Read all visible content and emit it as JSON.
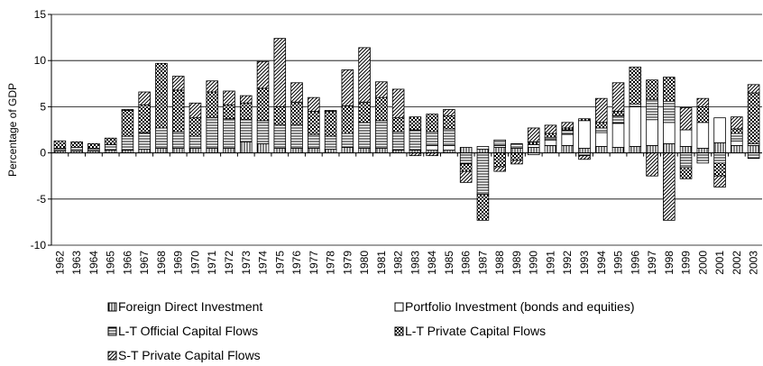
{
  "chart_data": {
    "type": "bar",
    "stacked": true,
    "y_label": "Percentage of GDP",
    "categories": [
      "1962",
      "1963",
      "1964",
      "1965",
      "1966",
      "1967",
      "1968",
      "1969",
      "1970",
      "1971",
      "1972",
      "1973",
      "1974",
      "1975",
      "1976",
      "1977",
      "1978",
      "1979",
      "1980",
      "1981",
      "1982",
      "1983",
      "1984",
      "1985",
      "1986",
      "1987",
      "1988",
      "1989",
      "1990",
      "1991",
      "1992",
      "1993",
      "1994",
      "1995",
      "1996",
      "1997",
      "1998",
      "1999",
      "2000",
      "2001",
      "2002",
      "2003"
    ],
    "series": [
      {
        "name": "Foreign Direct Investment",
        "color": "#000000",
        "pattern": "vertical",
        "values": [
          0.2,
          0.2,
          0.2,
          0.3,
          0.3,
          0.4,
          0.5,
          0.5,
          0.5,
          0.5,
          0.5,
          1.2,
          1.0,
          0.5,
          0.5,
          0.5,
          0.4,
          0.6,
          0.5,
          0.5,
          0.3,
          0.3,
          0.3,
          0.3,
          0.6,
          0.4,
          0.6,
          0.5,
          0.6,
          0.8,
          0.8,
          0.5,
          0.7,
          0.6,
          0.7,
          0.8,
          1.0,
          0.7,
          0.5,
          1.1,
          0.8,
          0.8
        ]
      },
      {
        "name": "Portfolio Investment (bonds and equities)",
        "color": "#000000",
        "pattern": "none",
        "values": [
          0,
          0,
          0,
          0,
          0,
          0,
          0,
          0,
          0,
          0,
          0,
          0,
          0,
          0,
          0,
          0,
          0,
          0,
          0,
          0,
          0,
          0,
          0.5,
          0.5,
          0,
          0.3,
          0.2,
          0,
          0.3,
          0.6,
          1.2,
          3.0,
          1.5,
          2.6,
          4.3,
          2.8,
          2.3,
          1.8,
          2.8,
          2.7,
          0.5,
          0.2
        ]
      },
      {
        "name": "L-T Official Capital Flows",
        "color": "#000000",
        "pattern": "horizontal",
        "values": [
          0.3,
          0.4,
          0.3,
          0.6,
          1.5,
          1.8,
          2.2,
          1.8,
          1.3,
          3.3,
          3.2,
          2.4,
          2.5,
          2.5,
          2.5,
          1.5,
          1.4,
          1.5,
          2.8,
          3.0,
          2.0,
          2.2,
          1.5,
          1.8,
          -1.2,
          -4.5,
          0.6,
          0.5,
          -0.2,
          0.3,
          0.5,
          -0.3,
          0.5,
          0.8,
          0.3,
          2.2,
          2.3,
          -1.6,
          -1.1,
          -1.1,
          0.8,
          -0.6
        ]
      },
      {
        "name": "L-T Private Capital Flows",
        "color": "#000000",
        "pattern": "dots",
        "values": [
          0.8,
          0.6,
          0.5,
          0.7,
          2.8,
          3.0,
          7.0,
          4.5,
          2.0,
          2.8,
          1.5,
          1.8,
          3.5,
          2.0,
          2.5,
          2.5,
          2.7,
          3.0,
          2.2,
          2.5,
          1.5,
          1.4,
          1.9,
          1.4,
          -0.8,
          -2.8,
          -1.5,
          -0.8,
          0.3,
          0.4,
          0.2,
          0.2,
          0.6,
          0.5,
          4.0,
          2.1,
          2.6,
          -1.2,
          1.7,
          -1.4,
          0.5,
          5.5
        ]
      },
      {
        "name": "S-T Private Capital Flows",
        "color": "#000000",
        "pattern": "diagonal",
        "values": [
          0,
          0,
          0,
          0,
          0.1,
          1.4,
          0,
          1.5,
          1.6,
          1.2,
          1.5,
          0.8,
          2.9,
          7.4,
          2.1,
          1.5,
          0.1,
          3.9,
          5.9,
          1.7,
          3.1,
          -0.3,
          -0.3,
          0.7,
          -1.2,
          0,
          -0.5,
          -0.4,
          1.5,
          0.9,
          0.6,
          -0.4,
          2.6,
          3.1,
          0,
          -2.5,
          -7.3,
          2.4,
          0.9,
          -1.2,
          1.3,
          0.9
        ]
      }
    ],
    "ylim": [
      -10,
      15
    ],
    "yticks": [
      -10,
      -5,
      0,
      5,
      10,
      15
    ],
    "grid": true
  }
}
